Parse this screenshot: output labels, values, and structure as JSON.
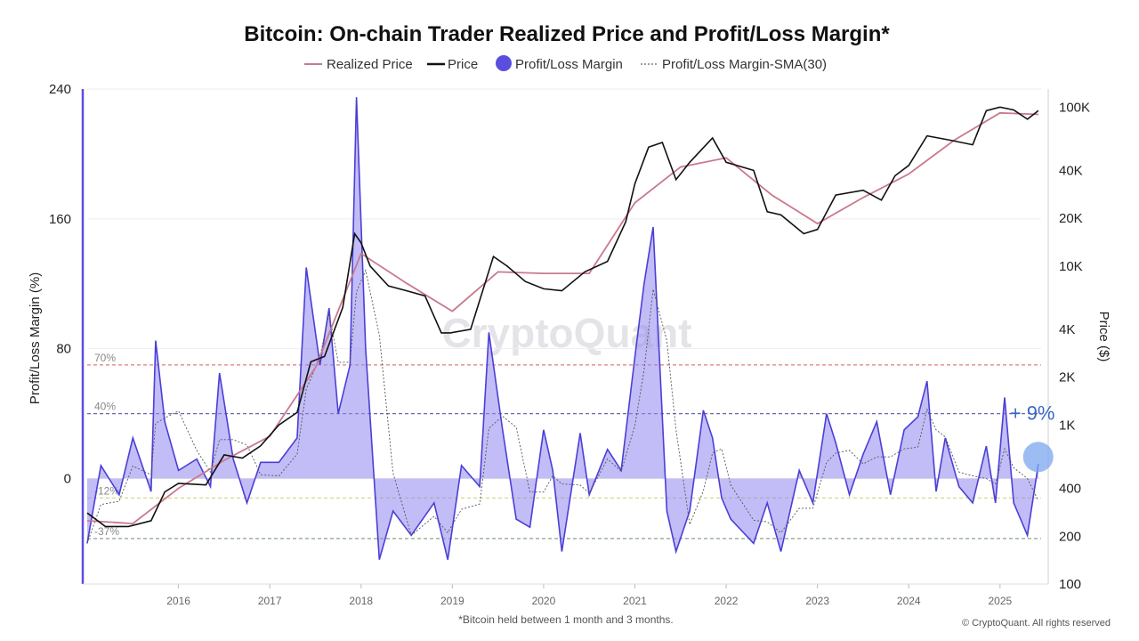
{
  "chart_data": {
    "type": "line",
    "title": "Bitcoin: On-chain Trader Realized Price and Profit/Loss Margin*",
    "legend": {
      "placement": "top-center",
      "items": [
        {
          "name": "Realized Price",
          "color": "#c97a8c",
          "symbol": "line"
        },
        {
          "name": "Price",
          "color": "#111111",
          "symbol": "line"
        },
        {
          "name": "Profit/Loss Margin",
          "color": "#5a4ee0",
          "symbol": "dot"
        },
        {
          "name": "Profit/Loss Margin-SMA(30)",
          "color": "#666666",
          "symbol": "dotted"
        }
      ]
    },
    "y_left": {
      "label": "Profit/Loss Margin (%)",
      "ticks": [
        "240",
        "160",
        "80",
        "0"
      ],
      "range": [
        -65,
        240
      ]
    },
    "y_right": {
      "label": "Price ($)",
      "scale": "log",
      "range": [
        100,
        130000
      ],
      "ticks": [
        "100K",
        "40K",
        "20K",
        "10K",
        "4K",
        "2K",
        "1K",
        "400",
        "200",
        "100"
      ],
      "tick_values": [
        100000,
        40000,
        20000,
        10000,
        4000,
        2000,
        1000,
        400,
        200,
        100
      ]
    },
    "x_ticks": [
      "2016",
      "2017",
      "2018",
      "2019",
      "2020",
      "2021",
      "2022",
      "2023",
      "2024",
      "2025"
    ],
    "x_tick_values": [
      2016,
      2017,
      2018,
      2019,
      2020,
      2021,
      2022,
      2023,
      2024,
      2025
    ],
    "x_range": [
      2015.0,
      2025.45
    ],
    "reference_lines": [
      {
        "label": "70%",
        "value": 70,
        "color": "#d98080"
      },
      {
        "label": "40%",
        "value": 40,
        "color": "#6a6aa8"
      },
      {
        "label": "-12%",
        "value": -12,
        "color": "#d8d88a"
      },
      {
        "label": "-37%",
        "value": -37,
        "color": "#7a9a7a"
      }
    ],
    "annotation": {
      "text": "+ 9%",
      "x": 2025.35,
      "y": 10
    },
    "series": [
      {
        "name": "Price",
        "x": [
          2015.0,
          2015.2,
          2015.45,
          2015.7,
          2015.85,
          2016.0,
          2016.3,
          2016.5,
          2016.7,
          2016.9,
          2017.1,
          2017.3,
          2017.45,
          2017.6,
          2017.8,
          2017.93,
          2018.0,
          2018.1,
          2018.3,
          2018.5,
          2018.7,
          2018.88,
          2018.98,
          2019.2,
          2019.45,
          2019.6,
          2019.8,
          2020.0,
          2020.2,
          2020.45,
          2020.7,
          2020.9,
          2021.0,
          2021.15,
          2021.3,
          2021.45,
          2021.6,
          2021.85,
          2022.0,
          2022.3,
          2022.45,
          2022.6,
          2022.85,
          2023.0,
          2023.2,
          2023.5,
          2023.7,
          2023.85,
          2024.0,
          2024.2,
          2024.45,
          2024.7,
          2024.85,
          2025.0,
          2025.15,
          2025.3,
          2025.42
        ],
        "values": [
          280,
          230,
          230,
          250,
          380,
          430,
          420,
          650,
          620,
          740,
          1000,
          1200,
          2500,
          2700,
          5500,
          16000,
          14000,
          10000,
          7500,
          7000,
          6500,
          3800,
          3800,
          4000,
          11500,
          10000,
          8000,
          7200,
          7000,
          9200,
          10700,
          19000,
          33000,
          56000,
          60000,
          35000,
          45000,
          64000,
          45000,
          40000,
          22000,
          21000,
          16000,
          17000,
          28000,
          30000,
          26000,
          37000,
          43000,
          66000,
          62000,
          58000,
          95000,
          100000,
          96000,
          84000,
          95000
        ]
      },
      {
        "name": "Realized Price",
        "x": [
          2015.0,
          2015.5,
          2016.0,
          2016.5,
          2017.0,
          2017.5,
          2018.0,
          2018.5,
          2019.0,
          2019.5,
          2020.0,
          2020.5,
          2021.0,
          2021.5,
          2022.0,
          2022.5,
          2023.0,
          2023.5,
          2024.0,
          2024.5,
          2025.0,
          2025.42
        ],
        "values": [
          250,
          240,
          400,
          600,
          850,
          2300,
          12000,
          7800,
          5200,
          9200,
          9000,
          9000,
          25000,
          42000,
          48000,
          28000,
          18500,
          27000,
          38000,
          62000,
          92000,
          90000
        ]
      },
      {
        "name": "Profit/Loss Margin",
        "x": [
          2015.0,
          2015.15,
          2015.35,
          2015.5,
          2015.7,
          2015.75,
          2015.85,
          2016.0,
          2016.2,
          2016.35,
          2016.45,
          2016.6,
          2016.75,
          2016.9,
          2017.1,
          2017.3,
          2017.4,
          2017.55,
          2017.65,
          2017.75,
          2017.88,
          2017.95,
          2018.05,
          2018.2,
          2018.35,
          2018.55,
          2018.8,
          2018.95,
          2019.1,
          2019.3,
          2019.4,
          2019.55,
          2019.7,
          2019.85,
          2020.0,
          2020.1,
          2020.2,
          2020.4,
          2020.5,
          2020.7,
          2020.85,
          2021.0,
          2021.1,
          2021.2,
          2021.35,
          2021.45,
          2021.6,
          2021.75,
          2021.85,
          2021.95,
          2022.05,
          2022.3,
          2022.45,
          2022.6,
          2022.8,
          2022.95,
          2023.1,
          2023.2,
          2023.35,
          2023.5,
          2023.65,
          2023.8,
          2023.95,
          2024.1,
          2024.2,
          2024.3,
          2024.4,
          2024.55,
          2024.7,
          2024.85,
          2024.95,
          2025.05,
          2025.15,
          2025.3,
          2025.42
        ],
        "values": [
          -40,
          8,
          -10,
          25,
          -8,
          85,
          35,
          5,
          12,
          -5,
          65,
          12,
          -15,
          10,
          10,
          25,
          130,
          70,
          105,
          40,
          70,
          235,
          80,
          -50,
          -20,
          -35,
          -15,
          -50,
          8,
          -5,
          90,
          30,
          -25,
          -30,
          30,
          5,
          -45,
          28,
          -10,
          18,
          5,
          75,
          120,
          155,
          -20,
          -45,
          -20,
          42,
          25,
          -12,
          -25,
          -40,
          -15,
          -45,
          5,
          -15,
          40,
          22,
          -10,
          15,
          35,
          -10,
          30,
          38,
          60,
          -8,
          25,
          -5,
          -15,
          20,
          -15,
          50,
          -15,
          -35,
          9
        ]
      }
    ]
  },
  "watermark": "CryptoQuant",
  "footnote": "*Bitcoin held between 1 month and 3 months.",
  "copyright": "© CryptoQuant. All rights reserved"
}
